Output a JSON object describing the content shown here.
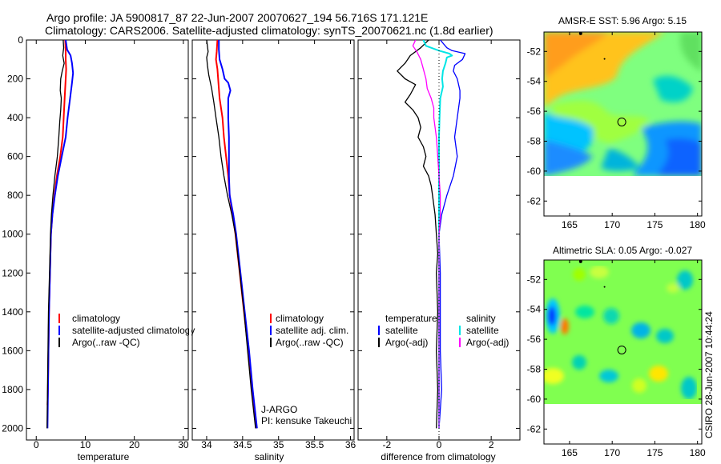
{
  "header": {
    "title_line1": "Argo profile: JA 5900817_87 22-Jun-2007 20070627_194 56.716S 171.121E",
    "title_line2": "Climatology: CARS2006. Satellite-adjusted climatology: synTS_20070621.nc (1.8d earlier)"
  },
  "credit": "CSIRO 28-Jun-2007 10:44:24",
  "colors": {
    "climatology": "#ff0000",
    "satellite": "#0000ff",
    "argo": "#000000",
    "satellite_diff": "#00e5e5",
    "argo_adj": "#ff00ff",
    "land_bg": "#ffffff"
  },
  "chart_data": [
    {
      "id": "temperature",
      "type": "line",
      "xlabel": "temperature",
      "ylabel": "",
      "xlim": [
        -2,
        31
      ],
      "ylim": [
        2060,
        0
      ],
      "xticks": [
        0,
        10,
        20,
        30
      ],
      "yticks": [
        0,
        200,
        400,
        600,
        800,
        1000,
        1200,
        1400,
        1600,
        1800,
        2000
      ],
      "series": [
        {
          "name": "climatology",
          "color": "#ff0000",
          "width": 2,
          "points": [
            [
              5.9,
              0
            ],
            [
              6.0,
              60
            ],
            [
              6.0,
              100
            ],
            [
              6.1,
              150
            ],
            [
              6.0,
              200
            ],
            [
              5.8,
              300
            ],
            [
              5.6,
              400
            ],
            [
              5.4,
              500
            ],
            [
              4.9,
              600
            ],
            [
              4.2,
              700
            ],
            [
              3.7,
              800
            ],
            [
              3.3,
              900
            ],
            [
              3.0,
              1000
            ],
            [
              2.8,
              1200
            ],
            [
              2.6,
              1400
            ],
            [
              2.5,
              1600
            ],
            [
              2.4,
              1800
            ],
            [
              2.3,
              1880
            ]
          ]
        },
        {
          "name": "satellite-adjusted climatology",
          "color": "#0000ff",
          "width": 2,
          "points": [
            [
              6.0,
              0
            ],
            [
              6.3,
              50
            ],
            [
              7.0,
              80
            ],
            [
              7.3,
              120
            ],
            [
              7.5,
              170
            ],
            [
              7.3,
              220
            ],
            [
              6.9,
              300
            ],
            [
              6.4,
              400
            ],
            [
              6.0,
              500
            ],
            [
              5.2,
              600
            ],
            [
              4.4,
              700
            ],
            [
              3.8,
              800
            ],
            [
              3.3,
              900
            ],
            [
              3.0,
              1000
            ],
            [
              2.8,
              1200
            ],
            [
              2.6,
              1400
            ],
            [
              2.5,
              1600
            ],
            [
              2.4,
              1800
            ],
            [
              2.3,
              2000
            ]
          ]
        },
        {
          "name": "Argo(..raw -QC)",
          "color": "#000000",
          "width": 1.3,
          "points": [
            [
              5.5,
              0
            ],
            [
              5.6,
              40
            ],
            [
              5.4,
              80
            ],
            [
              5.7,
              120
            ],
            [
              5.3,
              160
            ],
            [
              5.0,
              200
            ],
            [
              4.9,
              260
            ],
            [
              5.1,
              300
            ],
            [
              5.0,
              360
            ],
            [
              4.8,
              420
            ],
            [
              4.6,
              500
            ],
            [
              4.3,
              600
            ],
            [
              3.8,
              700
            ],
            [
              3.4,
              800
            ],
            [
              3.1,
              900
            ],
            [
              2.9,
              1000
            ],
            [
              2.7,
              1200
            ],
            [
              2.5,
              1400
            ],
            [
              2.4,
              1600
            ],
            [
              2.3,
              1800
            ],
            [
              2.2,
              2000
            ]
          ]
        }
      ],
      "legend": {
        "position": "lower-right",
        "entries": [
          "climatology",
          "satellite-adjusted climatology",
          "Argo(..raw -QC)"
        ]
      }
    },
    {
      "id": "salinity",
      "type": "line",
      "xlabel": "salinity",
      "ylabel": "",
      "xlim": [
        33.8,
        36.05
      ],
      "ylim": [
        2060,
        0
      ],
      "xticks": [
        34,
        34.5,
        35,
        35.5,
        36
      ],
      "xtick_labels": [
        "34",
        "34.5",
        "35",
        "35.5",
        "36"
      ],
      "series": [
        {
          "name": "climatology",
          "color": "#ff0000",
          "width": 2,
          "points": [
            [
              34.15,
              0
            ],
            [
              34.14,
              60
            ],
            [
              34.13,
              100
            ],
            [
              34.15,
              150
            ],
            [
              34.16,
              200
            ],
            [
              34.18,
              300
            ],
            [
              34.22,
              400
            ],
            [
              34.24,
              500
            ],
            [
              34.27,
              600
            ],
            [
              34.3,
              700
            ],
            [
              34.32,
              800
            ],
            [
              34.36,
              900
            ],
            [
              34.4,
              1000
            ],
            [
              34.46,
              1200
            ],
            [
              34.52,
              1400
            ],
            [
              34.58,
              1600
            ],
            [
              34.63,
              1800
            ],
            [
              34.69,
              2000
            ]
          ]
        },
        {
          "name": "satellite adj. clim.",
          "color": "#0000ff",
          "width": 2,
          "points": [
            [
              34.17,
              0
            ],
            [
              34.17,
              50
            ],
            [
              34.18,
              100
            ],
            [
              34.22,
              150
            ],
            [
              34.25,
              200
            ],
            [
              34.3,
              220
            ],
            [
              34.33,
              260
            ],
            [
              34.3,
              300
            ],
            [
              34.3,
              400
            ],
            [
              34.31,
              500
            ],
            [
              34.31,
              600
            ],
            [
              34.31,
              700
            ],
            [
              34.32,
              800
            ],
            [
              34.37,
              900
            ],
            [
              34.41,
              1000
            ],
            [
              34.47,
              1200
            ],
            [
              34.53,
              1400
            ],
            [
              34.59,
              1600
            ],
            [
              34.64,
              1800
            ],
            [
              34.7,
              2000
            ]
          ]
        },
        {
          "name": "Argo(..raw -QC)",
          "color": "#000000",
          "width": 1.3,
          "points": [
            [
              34.0,
              0
            ],
            [
              34.01,
              30
            ],
            [
              34.02,
              60
            ],
            [
              34.0,
              90
            ],
            [
              34.01,
              130
            ],
            [
              34.03,
              180
            ],
            [
              34.07,
              250
            ],
            [
              34.1,
              320
            ],
            [
              34.13,
              400
            ],
            [
              34.15,
              450
            ],
            [
              34.17,
              500
            ],
            [
              34.2,
              600
            ],
            [
              34.24,
              700
            ],
            [
              34.29,
              800
            ],
            [
              34.35,
              900
            ],
            [
              34.4,
              1000
            ],
            [
              34.46,
              1200
            ],
            [
              34.52,
              1400
            ],
            [
              34.57,
              1600
            ],
            [
              34.62,
              1800
            ],
            [
              34.68,
              2000
            ]
          ]
        }
      ],
      "legend": {
        "position": "lower-right",
        "entries": [
          "climatology",
          "satellite adj. clim.",
          "Argo(..raw -QC)"
        ]
      },
      "annotation": {
        "line1": "J-ARGO",
        "line2": "PI: kensuke Takeuchi"
      }
    },
    {
      "id": "difference",
      "type": "line",
      "xlabel": "difference from climatology",
      "xlim": [
        -3.1,
        3.1
      ],
      "ylim": [
        2060,
        0
      ],
      "xticks": [
        -2,
        0,
        2
      ],
      "series": [
        {
          "name": "temperature satellite",
          "color": "#0000ff",
          "width": 1.3,
          "points": [
            [
              0.05,
              0
            ],
            [
              0.3,
              40
            ],
            [
              0.5,
              55
            ],
            [
              1.0,
              70
            ],
            [
              0.9,
              100
            ],
            [
              0.6,
              130
            ],
            [
              0.55,
              160
            ],
            [
              0.7,
              200
            ],
            [
              0.8,
              260
            ],
            [
              0.8,
              300
            ],
            [
              0.7,
              400
            ],
            [
              0.6,
              500
            ],
            [
              0.7,
              600
            ],
            [
              0.55,
              700
            ],
            [
              0.3,
              800
            ],
            [
              0.1,
              900
            ],
            [
              0.0,
              1000
            ],
            [
              0.05,
              1200
            ],
            [
              0.05,
              1400
            ],
            [
              0.05,
              1600
            ],
            [
              0.1,
              1800
            ],
            [
              0.0,
              2000
            ]
          ]
        },
        {
          "name": "temperature Argo(-adj)",
          "color": "#000000",
          "width": 1.3,
          "points": [
            [
              -0.4,
              0
            ],
            [
              -0.7,
              40
            ],
            [
              -1.1,
              80
            ],
            [
              -1.3,
              120
            ],
            [
              -1.6,
              160
            ],
            [
              -1.3,
              200
            ],
            [
              -0.9,
              230
            ],
            [
              -1.1,
              280
            ],
            [
              -1.3,
              320
            ],
            [
              -1.0,
              360
            ],
            [
              -0.8,
              400
            ],
            [
              -0.7,
              450
            ],
            [
              -0.8,
              500
            ],
            [
              -0.6,
              550
            ],
            [
              -0.5,
              600
            ],
            [
              -0.6,
              650
            ],
            [
              -0.4,
              700
            ],
            [
              -0.3,
              750
            ],
            [
              -0.25,
              800
            ],
            [
              -0.2,
              850
            ],
            [
              -0.15,
              900
            ],
            [
              -0.1,
              1000
            ],
            [
              -0.05,
              1100
            ],
            [
              -0.1,
              1200
            ],
            [
              -0.05,
              1400
            ],
            [
              -0.1,
              1600
            ],
            [
              -0.05,
              1800
            ],
            [
              -0.1,
              2000
            ]
          ]
        },
        {
          "name": "salinity satellite",
          "color": "#00e5e5",
          "width": 2,
          "points": [
            [
              -0.6,
              0
            ],
            [
              -0.5,
              30
            ],
            [
              0.0,
              55
            ],
            [
              0.4,
              70
            ],
            [
              0.5,
              80
            ],
            [
              0.3,
              90
            ],
            [
              0.25,
              120
            ],
            [
              0.15,
              160
            ],
            [
              0.12,
              200
            ],
            [
              0.15,
              240
            ],
            [
              0.05,
              300
            ],
            [
              0.02,
              400
            ],
            [
              0.0,
              500
            ],
            [
              0.0,
              600
            ],
            [
              0.0,
              700
            ],
            [
              0.0,
              800
            ],
            [
              0.0,
              900
            ],
            [
              0.0,
              1000
            ],
            [
              0.0,
              1200
            ],
            [
              0.0,
              1400
            ],
            [
              0.0,
              1600
            ],
            [
              0.0,
              1800
            ],
            [
              0.0,
              2000
            ]
          ]
        },
        {
          "name": "salinity Argo(-adj)",
          "color": "#ff00ff",
          "width": 1.3,
          "points": [
            [
              -0.9,
              0
            ],
            [
              -1.0,
              30
            ],
            [
              -0.85,
              60
            ],
            [
              -0.7,
              100
            ],
            [
              -0.6,
              150
            ],
            [
              -0.5,
              200
            ],
            [
              -0.45,
              250
            ],
            [
              -0.3,
              300
            ],
            [
              -0.2,
              350
            ],
            [
              -0.2,
              400
            ],
            [
              -0.15,
              450
            ],
            [
              -0.1,
              500
            ],
            [
              -0.05,
              600
            ],
            [
              0.0,
              700
            ],
            [
              0.05,
              800
            ],
            [
              0.05,
              900
            ],
            [
              0.0,
              1000
            ],
            [
              0.0,
              1200
            ],
            [
              0.0,
              1400
            ],
            [
              0.0,
              1600
            ],
            [
              0.0,
              1800
            ],
            [
              0.0,
              2000
            ]
          ]
        }
      ],
      "legend": {
        "position": "lower-center",
        "col1_title": "temperature",
        "col1": [
          "satellite",
          "Argo(-adj)"
        ],
        "col2_title": "salinity",
        "col2": [
          "satellite",
          "Argo(-adj)"
        ]
      }
    },
    {
      "id": "sst_map",
      "type": "heatmap",
      "title": "AMSR-E SST: 5.96 Argo: 5.15",
      "xlim": [
        162,
        180.5
      ],
      "ylim": [
        -63,
        -50.7
      ],
      "xticks": [
        165,
        170,
        175,
        180
      ],
      "yticks": [
        -52,
        -54,
        -56,
        -58,
        -60,
        -62
      ],
      "data_lat_range": [
        -60,
        -50.7
      ],
      "argo_position": {
        "lon": 171.121,
        "lat": -56.716
      },
      "value": 5.96,
      "argo_value": 5.15
    },
    {
      "id": "sla_map",
      "type": "heatmap",
      "title": "Altimetric SLA: 0.05 Argo: -0.027",
      "xlim": [
        162,
        180.5
      ],
      "ylim": [
        -63,
        -50.7
      ],
      "xticks": [
        165,
        170,
        175,
        180
      ],
      "yticks": [
        -52,
        -54,
        -56,
        -58,
        -60,
        -62
      ],
      "data_lat_range": [
        -60,
        -50.7
      ],
      "argo_position": {
        "lon": 171.121,
        "lat": -56.716
      },
      "value": 0.05,
      "argo_value": -0.027
    }
  ]
}
